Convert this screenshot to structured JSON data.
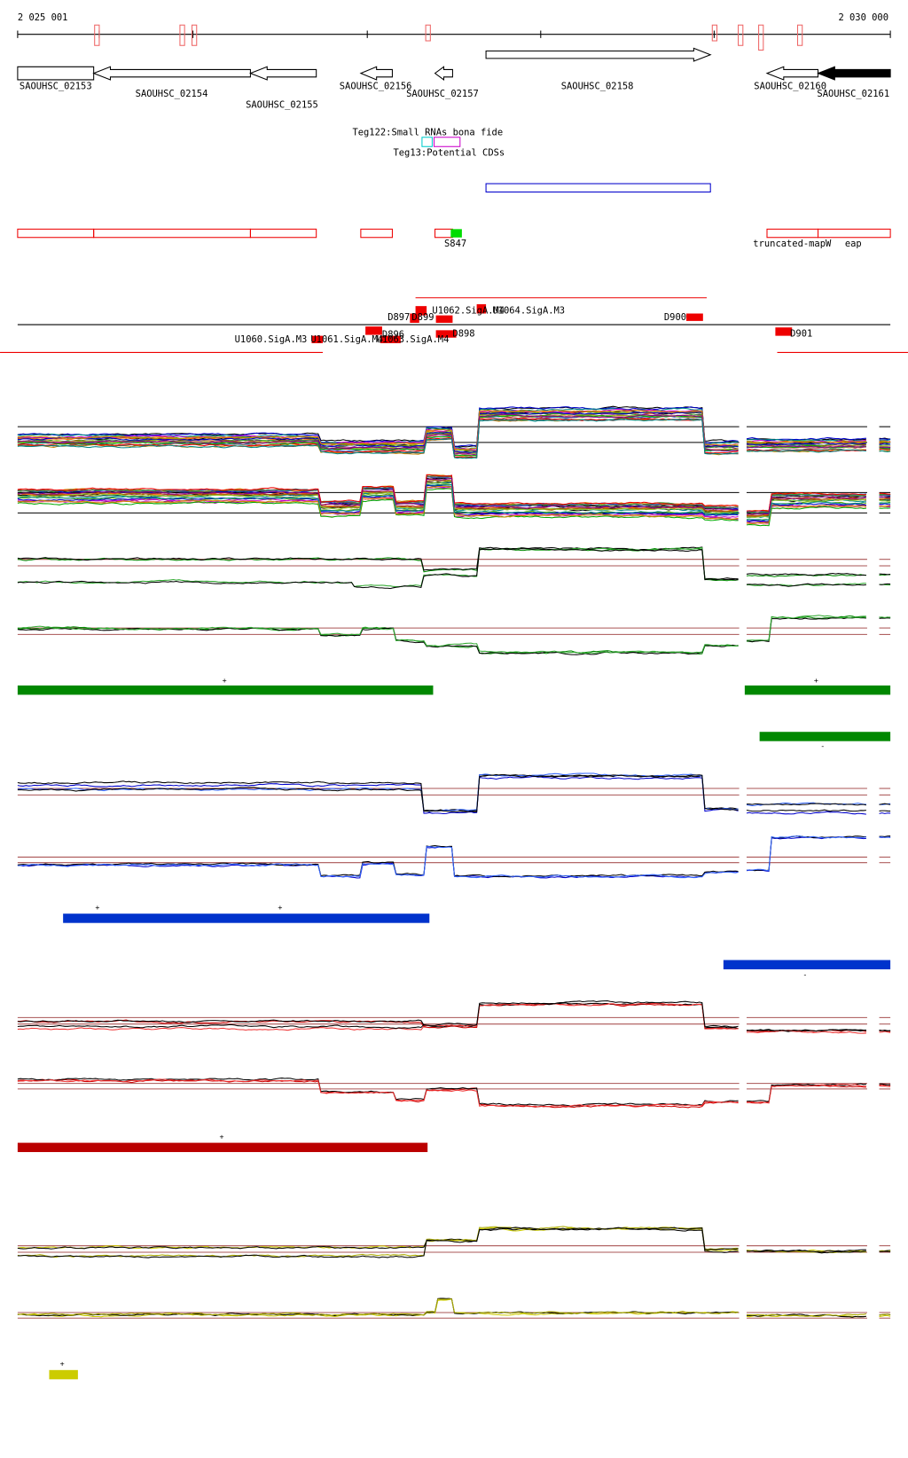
{
  "coordinates": {
    "start": "2 025 001",
    "end": "2 030 000"
  },
  "genes": [
    "SAOUHSC_02153",
    "SAOUHSC_02154",
    "SAOUHSC_02155",
    "SAOUHSC_02156",
    "SAOUHSC_02157",
    "SAOUHSC_02158",
    "SAOUHSC_02160",
    "SAOUHSC_02161"
  ],
  "annotations": {
    "small_rnas": "Teg122:Small RNAs bona fide",
    "potential_cds": "Teg13:Potential CDSs"
  },
  "features": [
    "S847",
    "truncated-mapW",
    "eap"
  ],
  "promoters": [
    "U1062.SigA.M4",
    "U1064.SigA.M3",
    "D897",
    "D899",
    "D900",
    "D896",
    "D898",
    "D901",
    "U1060.SigA.M3",
    "U1061.SigA.M4",
    "U1063.SigA.M4"
  ],
  "strand_marks": [
    "+",
    "+",
    "-",
    "+",
    "+",
    "-",
    "+",
    "+"
  ]
}
